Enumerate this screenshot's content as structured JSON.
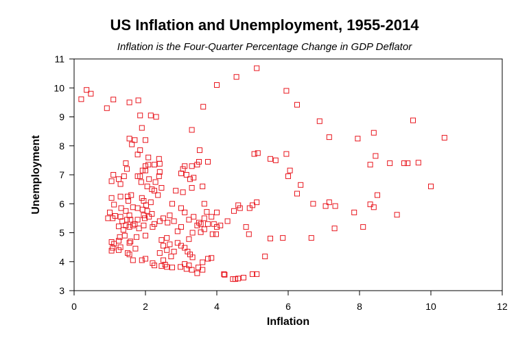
{
  "chart_data": {
    "type": "scatter",
    "title": "US Inflation and Unemployment, 1955-2014",
    "subtitle": "Inflation is the Four-Quarter Percentage Change in GDP Deflator",
    "xlabel": "Inflation",
    "ylabel": "Unemployment",
    "xlim": [
      0,
      12
    ],
    "ylim": [
      3,
      11
    ],
    "xticks": [
      "0",
      "2",
      "4",
      "6",
      "8",
      "10",
      "12"
    ],
    "yticks": [
      "3",
      "4",
      "5",
      "6",
      "7",
      "8",
      "9",
      "10",
      "11"
    ],
    "marker": "open-square",
    "color": "#e8141c",
    "grid": false,
    "legend": "none",
    "points": [
      [
        0.35,
        9.93
      ],
      [
        0.2,
        9.61
      ],
      [
        0.47,
        9.8
      ],
      [
        0.92,
        9.3
      ],
      [
        1.1,
        9.6
      ],
      [
        1.55,
        9.5
      ],
      [
        1.8,
        9.57
      ],
      [
        2.15,
        9.05
      ],
      [
        2.3,
        9.0
      ],
      [
        1.85,
        9.05
      ],
      [
        1.9,
        8.62
      ],
      [
        1.55,
        8.25
      ],
      [
        1.62,
        8.05
      ],
      [
        1.7,
        8.2
      ],
      [
        2.0,
        8.2
      ],
      [
        1.85,
        7.85
      ],
      [
        1.78,
        7.7
      ],
      [
        2.08,
        7.6
      ],
      [
        2.38,
        7.55
      ],
      [
        2.25,
        7.35
      ],
      [
        2.4,
        7.38
      ],
      [
        2.4,
        7.1
      ],
      [
        2.0,
        7.3
      ],
      [
        2.0,
        7.15
      ],
      [
        2.08,
        7.35
      ],
      [
        1.45,
        7.4
      ],
      [
        1.48,
        7.2
      ],
      [
        1.4,
        6.95
      ],
      [
        1.1,
        7.0
      ],
      [
        1.25,
        6.85
      ],
      [
        1.05,
        6.78
      ],
      [
        1.3,
        6.68
      ],
      [
        1.78,
        6.95
      ],
      [
        1.88,
        6.75
      ],
      [
        2.1,
        6.85
      ],
      [
        2.38,
        6.95
      ],
      [
        2.28,
        6.75
      ],
      [
        2.45,
        6.55
      ],
      [
        2.35,
        6.3
      ],
      [
        2.25,
        6.45
      ],
      [
        2.05,
        6.6
      ],
      [
        2.18,
        6.5
      ],
      [
        1.9,
        6.2
      ],
      [
        1.95,
        6.1
      ],
      [
        2.15,
        6.05
      ],
      [
        1.6,
        6.3
      ],
      [
        1.5,
        6.25
      ],
      [
        1.52,
        6.1
      ],
      [
        1.3,
        6.25
      ],
      [
        1.05,
        6.2
      ],
      [
        1.12,
        5.97
      ],
      [
        1.65,
        5.88
      ],
      [
        1.78,
        5.85
      ],
      [
        1.92,
        5.8
      ],
      [
        2.05,
        5.75
      ],
      [
        2.1,
        5.55
      ],
      [
        2.18,
        5.65
      ],
      [
        1.95,
        5.6
      ],
      [
        1.98,
        5.5
      ],
      [
        1.78,
        5.45
      ],
      [
        1.7,
        5.3
      ],
      [
        1.65,
        5.25
      ],
      [
        1.55,
        5.2
      ],
      [
        1.45,
        5.25
      ],
      [
        1.38,
        5.1
      ],
      [
        1.25,
        5.22
      ],
      [
        1.08,
        5.5
      ],
      [
        1.0,
        5.7
      ],
      [
        0.95,
        5.5
      ],
      [
        1.15,
        5.58
      ],
      [
        1.3,
        5.55
      ],
      [
        1.35,
        5.4
      ],
      [
        1.48,
        5.45
      ],
      [
        1.55,
        5.6
      ],
      [
        1.32,
        5.85
      ],
      [
        1.45,
        5.75
      ],
      [
        1.58,
        5.45
      ],
      [
        1.82,
        5.15
      ],
      [
        1.95,
        5.25
      ],
      [
        2.2,
        5.2
      ],
      [
        2.0,
        4.9
      ],
      [
        1.75,
        4.85
      ],
      [
        1.58,
        4.7
      ],
      [
        1.55,
        4.65
      ],
      [
        1.42,
        4.9
      ],
      [
        1.28,
        4.85
      ],
      [
        1.25,
        4.72
      ],
      [
        1.12,
        4.62
      ],
      [
        1.05,
        4.68
      ],
      [
        1.08,
        4.48
      ],
      [
        1.05,
        4.38
      ],
      [
        1.25,
        4.4
      ],
      [
        1.3,
        4.5
      ],
      [
        1.5,
        4.3
      ],
      [
        1.55,
        4.25
      ],
      [
        1.65,
        4.05
      ],
      [
        1.9,
        4.05
      ],
      [
        2.0,
        4.1
      ],
      [
        2.2,
        3.95
      ],
      [
        2.25,
        3.87
      ],
      [
        2.4,
        4.3
      ],
      [
        2.5,
        4.55
      ],
      [
        2.45,
        4.75
      ],
      [
        2.5,
        4.05
      ],
      [
        2.55,
        3.9
      ],
      [
        2.45,
        3.85
      ],
      [
        2.6,
        3.82
      ],
      [
        2.75,
        3.8
      ],
      [
        2.72,
        4.18
      ],
      [
        2.8,
        4.35
      ],
      [
        2.6,
        4.4
      ],
      [
        2.68,
        4.6
      ],
      [
        2.9,
        4.65
      ],
      [
        3.0,
        4.55
      ],
      [
        3.1,
        4.48
      ],
      [
        3.18,
        4.35
      ],
      [
        3.25,
        4.25
      ],
      [
        3.32,
        4.15
      ],
      [
        3.1,
        3.92
      ],
      [
        3.22,
        3.87
      ],
      [
        2.98,
        3.82
      ],
      [
        3.15,
        3.75
      ],
      [
        3.3,
        3.72
      ],
      [
        3.48,
        3.8
      ],
      [
        3.6,
        3.72
      ],
      [
        3.6,
        3.98
      ],
      [
        3.75,
        4.1
      ],
      [
        3.85,
        4.13
      ],
      [
        3.88,
        4.95
      ],
      [
        3.98,
        4.95
      ],
      [
        3.55,
        5.02
      ],
      [
        3.65,
        5.12
      ],
      [
        3.75,
        5.3
      ],
      [
        3.92,
        5.3
      ],
      [
        4.0,
        5.2
      ],
      [
        4.1,
        5.25
      ],
      [
        4.3,
        5.4
      ],
      [
        4.48,
        5.75
      ],
      [
        4.6,
        5.95
      ],
      [
        4.65,
        5.85
      ],
      [
        4.82,
        5.2
      ],
      [
        4.9,
        4.95
      ],
      [
        4.92,
        5.85
      ],
      [
        5.0,
        5.95
      ],
      [
        5.12,
        6.05
      ],
      [
        5.5,
        4.8
      ],
      [
        5.85,
        4.82
      ],
      [
        5.35,
        4.18
      ],
      [
        5.0,
        3.57
      ],
      [
        5.12,
        3.57
      ],
      [
        4.6,
        3.42
      ],
      [
        4.52,
        3.4
      ],
      [
        4.45,
        3.4
      ],
      [
        4.22,
        3.55
      ],
      [
        4.2,
        3.57
      ],
      [
        3.45,
        3.6
      ],
      [
        3.55,
        5.3
      ],
      [
        3.5,
        5.35
      ],
      [
        3.65,
        5.5
      ],
      [
        3.72,
        5.72
      ],
      [
        3.85,
        5.55
      ],
      [
        4.0,
        5.7
      ],
      [
        3.65,
        6.0
      ],
      [
        3.6,
        6.6
      ],
      [
        3.75,
        7.45
      ],
      [
        3.45,
        7.35
      ],
      [
        3.5,
        7.45
      ],
      [
        3.52,
        7.85
      ],
      [
        3.3,
        7.3
      ],
      [
        3.1,
        7.3
      ],
      [
        3.05,
        7.2
      ],
      [
        3.0,
        7.05
      ],
      [
        3.15,
        7.0
      ],
      [
        3.25,
        6.85
      ],
      [
        3.35,
        6.9
      ],
      [
        3.3,
        6.55
      ],
      [
        3.05,
        6.4
      ],
      [
        3.0,
        5.85
      ],
      [
        3.1,
        5.7
      ],
      [
        3.22,
        5.45
      ],
      [
        3.35,
        5.55
      ],
      [
        3.45,
        5.25
      ],
      [
        3.32,
        5.0
      ],
      [
        3.22,
        4.78
      ],
      [
        3.0,
        5.2
      ],
      [
        2.8,
        5.4
      ],
      [
        2.68,
        5.6
      ],
      [
        2.62,
        5.35
      ],
      [
        2.5,
        5.5
      ],
      [
        2.4,
        5.4
      ],
      [
        2.75,
        6.0
      ],
      [
        2.85,
        6.45
      ],
      [
        3.3,
        8.55
      ],
      [
        3.62,
        9.35
      ],
      [
        4.0,
        10.1
      ],
      [
        4.55,
        10.38
      ],
      [
        5.12,
        10.68
      ],
      [
        5.95,
        9.9
      ],
      [
        6.25,
        9.42
      ],
      [
        6.88,
        8.85
      ],
      [
        7.15,
        8.3
      ],
      [
        7.95,
        8.25
      ],
      [
        8.4,
        8.45
      ],
      [
        9.5,
        8.88
      ],
      [
        10.38,
        8.28
      ],
      [
        9.65,
        7.42
      ],
      [
        9.35,
        7.4
      ],
      [
        9.25,
        7.4
      ],
      [
        8.85,
        7.4
      ],
      [
        8.45,
        7.65
      ],
      [
        8.3,
        7.35
      ],
      [
        8.5,
        6.3
      ],
      [
        8.3,
        5.98
      ],
      [
        8.4,
        5.88
      ],
      [
        8.1,
        5.2
      ],
      [
        7.85,
        5.7
      ],
      [
        7.3,
        5.15
      ],
      [
        7.32,
        5.92
      ],
      [
        7.15,
        6.05
      ],
      [
        7.05,
        5.92
      ],
      [
        6.65,
        4.82
      ],
      [
        6.7,
        6.0
      ],
      [
        6.35,
        6.65
      ],
      [
        6.25,
        6.35
      ],
      [
        6.0,
        6.95
      ],
      [
        6.05,
        7.15
      ],
      [
        5.95,
        7.72
      ],
      [
        5.5,
        7.55
      ],
      [
        5.65,
        7.5
      ],
      [
        5.05,
        7.72
      ],
      [
        5.15,
        7.75
      ],
      [
        10.0,
        6.6
      ],
      [
        9.05,
        5.62
      ],
      [
        4.75,
        3.45
      ],
      [
        2.02,
        5.95
      ],
      [
        1.85,
        6.95
      ],
      [
        1.92,
        7.15
      ],
      [
        2.25,
        5.3
      ],
      [
        2.6,
        4.82
      ],
      [
        1.72,
        4.45
      ],
      [
        2.9,
        5.05
      ]
    ]
  }
}
